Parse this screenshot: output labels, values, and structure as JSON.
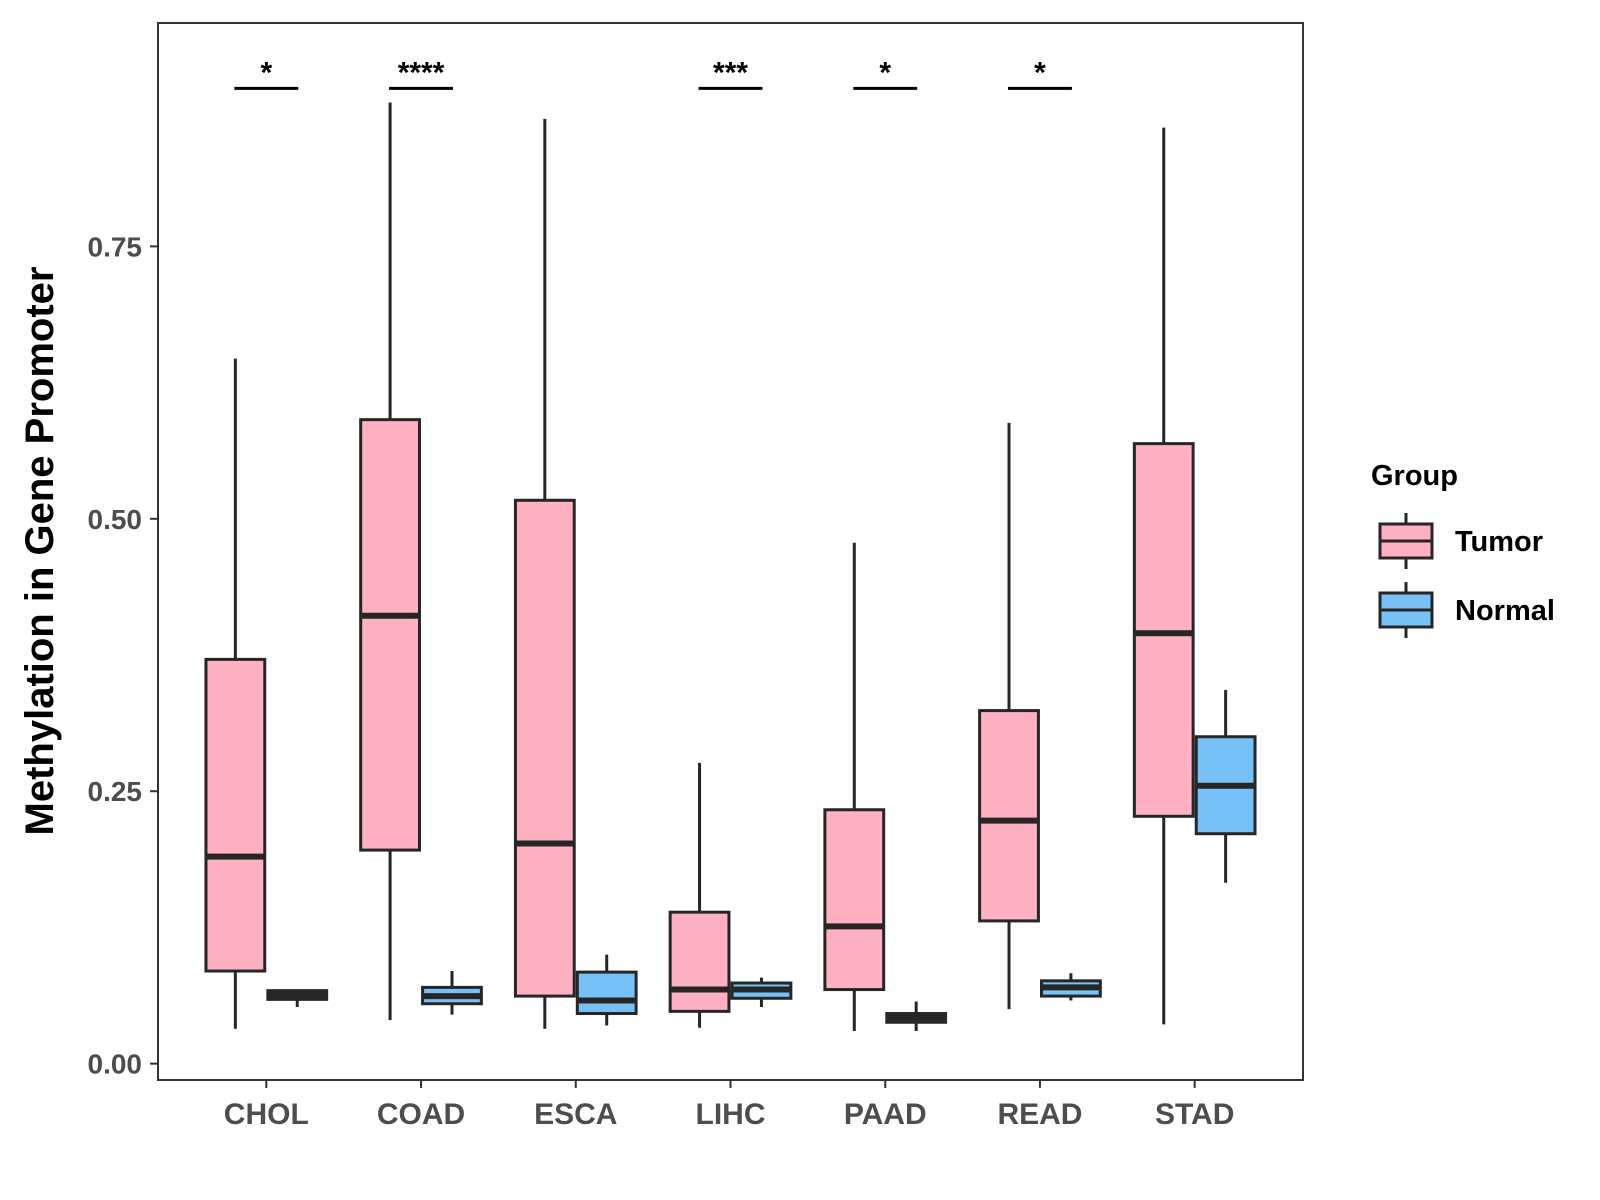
{
  "chart_data": {
    "type": "boxplot",
    "title": "",
    "xlabel": "",
    "ylabel": "Methylation in Gene Promoter",
    "ylim": [
      -0.015,
      0.955
    ],
    "yticks": [
      0.0,
      0.25,
      0.5,
      0.75
    ],
    "ytick_labels": [
      "0.00",
      "0.25",
      "0.50",
      "0.75"
    ],
    "categories": [
      "CHOL",
      "COAD",
      "ESCA",
      "LIHC",
      "PAAD",
      "READ",
      "STAD"
    ],
    "legend": {
      "title": "Group",
      "position": "right",
      "entries": [
        {
          "name": "Tumor",
          "color": "#FFB0C1"
        },
        {
          "name": "Normal",
          "color": "#77C1F6"
        }
      ]
    },
    "series": [
      {
        "name": "Tumor",
        "color": "#FFB0C1",
        "boxes": [
          {
            "category": "CHOL",
            "min": 0.032,
            "q1": 0.085,
            "median": 0.19,
            "q3": 0.371,
            "max": 0.647
          },
          {
            "category": "COAD",
            "min": 0.04,
            "q1": 0.196,
            "median": 0.411,
            "q3": 0.591,
            "max": 0.882
          },
          {
            "category": "ESCA",
            "min": 0.032,
            "q1": 0.062,
            "median": 0.202,
            "q3": 0.517,
            "max": 0.867
          },
          {
            "category": "LIHC",
            "min": 0.033,
            "q1": 0.048,
            "median": 0.068,
            "q3": 0.139,
            "max": 0.276
          },
          {
            "category": "PAAD",
            "min": 0.03,
            "q1": 0.068,
            "median": 0.126,
            "q3": 0.233,
            "max": 0.478
          },
          {
            "category": "READ",
            "min": 0.05,
            "q1": 0.131,
            "median": 0.223,
            "q3": 0.324,
            "max": 0.588
          },
          {
            "category": "STAD",
            "min": 0.036,
            "q1": 0.227,
            "median": 0.395,
            "q3": 0.569,
            "max": 0.859
          }
        ]
      },
      {
        "name": "Normal",
        "color": "#77C1F6",
        "boxes": [
          {
            "category": "CHOL",
            "min": 0.052,
            "q1": 0.059,
            "median": 0.063,
            "q3": 0.067,
            "max": 0.068
          },
          {
            "category": "COAD",
            "min": 0.045,
            "q1": 0.055,
            "median": 0.062,
            "q3": 0.07,
            "max": 0.085
          },
          {
            "category": "ESCA",
            "min": 0.035,
            "q1": 0.046,
            "median": 0.058,
            "q3": 0.084,
            "max": 0.1
          },
          {
            "category": "LIHC",
            "min": 0.052,
            "q1": 0.06,
            "median": 0.068,
            "q3": 0.074,
            "max": 0.079
          },
          {
            "category": "PAAD",
            "min": 0.03,
            "q1": 0.038,
            "median": 0.042,
            "q3": 0.046,
            "max": 0.057
          },
          {
            "category": "READ",
            "min": 0.058,
            "q1": 0.062,
            "median": 0.07,
            "q3": 0.076,
            "max": 0.083
          },
          {
            "category": "STAD",
            "min": 0.166,
            "q1": 0.211,
            "median": 0.255,
            "q3": 0.3,
            "max": 0.343
          }
        ]
      }
    ],
    "significance": [
      {
        "category": "CHOL",
        "label": "*"
      },
      {
        "category": "COAD",
        "label": "****"
      },
      {
        "category": "LIHC",
        "label": "***"
      },
      {
        "category": "PAAD",
        "label": "*"
      },
      {
        "category": "READ",
        "label": "*"
      }
    ],
    "significance_level": 0.895,
    "grid": false
  }
}
